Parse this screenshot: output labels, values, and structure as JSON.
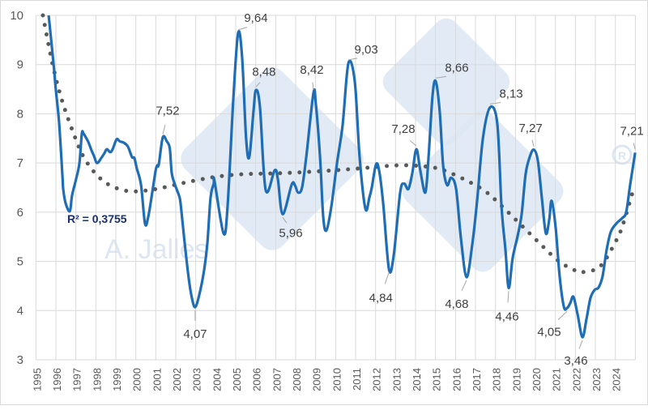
{
  "chart_data": {
    "type": "line",
    "title": "",
    "xlabel": "",
    "ylabel": "",
    "xlim": [
      1995,
      2025
    ],
    "ylim": [
      3,
      10
    ],
    "y_ticks": [
      "3",
      "4",
      "5",
      "6",
      "7",
      "8",
      "9",
      "10"
    ],
    "x_ticks": [
      "1995",
      "1996",
      "1997",
      "1998",
      "1999",
      "2000",
      "2001",
      "2002",
      "2003",
      "2004",
      "2005",
      "2006",
      "2007",
      "2008",
      "2009",
      "2010",
      "2011",
      "2012",
      "2013",
      "2014",
      "2015",
      "2016",
      "2017",
      "2018",
      "2019",
      "2020",
      "2021",
      "2022",
      "2023",
      "2024"
    ],
    "grid": true,
    "legend": "none",
    "series": [
      {
        "color": "#1f6db5",
        "style": "solid",
        "points": [
          [
            1995.64,
            10.0
          ],
          [
            1995.88,
            9.03
          ],
          [
            1996.0,
            8.48
          ],
          [
            1996.16,
            7.83
          ],
          [
            1996.33,
            6.73
          ],
          [
            1996.37,
            6.46
          ],
          [
            1996.49,
            6.18
          ],
          [
            1996.7,
            6.02
          ],
          [
            1996.81,
            6.34
          ],
          [
            1997.01,
            6.67
          ],
          [
            1997.18,
            7.0
          ],
          [
            1997.3,
            7.6
          ],
          [
            1997.38,
            7.6
          ],
          [
            1997.5,
            7.52
          ],
          [
            1997.62,
            7.43
          ],
          [
            1997.78,
            7.26
          ],
          [
            1997.9,
            7.15
          ],
          [
            1998.06,
            7.0
          ],
          [
            1998.27,
            7.1
          ],
          [
            1998.43,
            7.2
          ],
          [
            1998.55,
            7.28
          ],
          [
            1998.72,
            7.22
          ],
          [
            1998.84,
            7.28
          ],
          [
            1999.04,
            7.48
          ],
          [
            1999.2,
            7.44
          ],
          [
            1999.41,
            7.41
          ],
          [
            1999.61,
            7.33
          ],
          [
            1999.81,
            7.12
          ],
          [
            1999.93,
            7.1
          ],
          [
            2000.05,
            6.89
          ],
          [
            2000.26,
            6.56
          ],
          [
            2000.46,
            5.77
          ],
          [
            2000.62,
            5.9
          ],
          [
            2000.82,
            6.39
          ],
          [
            2000.99,
            6.84
          ],
          [
            2001.07,
            6.95
          ],
          [
            2001.15,
            6.97
          ],
          [
            2001.35,
            7.52
          ],
          [
            2001.55,
            7.44
          ],
          [
            2001.7,
            7.3
          ],
          [
            2001.8,
            6.79
          ],
          [
            2001.96,
            6.56
          ],
          [
            2002.16,
            6.34
          ],
          [
            2002.24,
            6.18
          ],
          [
            2002.45,
            5.36
          ],
          [
            2002.65,
            4.65
          ],
          [
            2002.81,
            4.25
          ],
          [
            2002.97,
            4.07
          ],
          [
            2003.17,
            4.31
          ],
          [
            2003.41,
            4.8
          ],
          [
            2003.58,
            5.36
          ],
          [
            2003.74,
            6.29
          ],
          [
            2003.9,
            6.58
          ],
          [
            2003.94,
            6.63
          ],
          [
            2004.39,
            5.57
          ],
          [
            2004.59,
            6.1
          ],
          [
            2004.88,
            8.3
          ],
          [
            2005.12,
            9.64
          ],
          [
            2005.32,
            9.15
          ],
          [
            2005.52,
            7.5
          ],
          [
            2005.68,
            7.12
          ],
          [
            2005.89,
            8.05
          ],
          [
            2006.01,
            8.48
          ],
          [
            2006.21,
            8.15
          ],
          [
            2006.5,
            6.45
          ],
          [
            2006.95,
            6.85
          ],
          [
            2007.11,
            6.67
          ],
          [
            2007.35,
            5.96
          ],
          [
            2007.8,
            6.56
          ],
          [
            2007.96,
            6.55
          ],
          [
            2008.12,
            6.4
          ],
          [
            2008.32,
            6.5
          ],
          [
            2008.53,
            7.12
          ],
          [
            2008.89,
            8.42
          ],
          [
            2009.01,
            8.2
          ],
          [
            2009.22,
            7.12
          ],
          [
            2009.38,
            5.9
          ],
          [
            2009.54,
            5.63
          ],
          [
            2009.78,
            6.1
          ],
          [
            2010.07,
            7.0
          ],
          [
            2010.35,
            7.77
          ],
          [
            2010.64,
            9.03
          ],
          [
            2010.96,
            8.65
          ],
          [
            2011.2,
            7.12
          ],
          [
            2011.49,
            6.07
          ],
          [
            2011.69,
            6.3
          ],
          [
            2011.81,
            6.5
          ],
          [
            2012.02,
            6.97
          ],
          [
            2012.18,
            6.84
          ],
          [
            2012.38,
            6.18
          ],
          [
            2012.67,
            4.84
          ],
          [
            2012.91,
            5.13
          ],
          [
            2013.23,
            6.4
          ],
          [
            2013.43,
            6.58
          ],
          [
            2013.64,
            6.47
          ],
          [
            2013.84,
            6.8
          ],
          [
            2014.04,
            7.28
          ],
          [
            2014.24,
            6.84
          ],
          [
            2014.49,
            6.4
          ],
          [
            2014.65,
            7.12
          ],
          [
            2014.85,
            8.37
          ],
          [
            2015.01,
            8.66
          ],
          [
            2015.21,
            8.04
          ],
          [
            2015.38,
            6.95
          ],
          [
            2015.58,
            6.55
          ],
          [
            2015.78,
            6.7
          ],
          [
            2016.03,
            6.47
          ],
          [
            2016.27,
            5.47
          ],
          [
            2016.55,
            4.68
          ],
          [
            2016.84,
            5.35
          ],
          [
            2017.08,
            6.23
          ],
          [
            2017.37,
            7.5
          ],
          [
            2017.73,
            8.13
          ],
          [
            2018.09,
            7.8
          ],
          [
            2018.3,
            6.12
          ],
          [
            2018.5,
            5.23
          ],
          [
            2018.66,
            4.46
          ],
          [
            2018.86,
            5.07
          ],
          [
            2019.11,
            5.52
          ],
          [
            2019.31,
            5.96
          ],
          [
            2019.51,
            6.78
          ],
          [
            2019.72,
            7.13
          ],
          [
            2019.92,
            7.27
          ],
          [
            2020.12,
            7.05
          ],
          [
            2020.32,
            6.29
          ],
          [
            2020.52,
            5.57
          ],
          [
            2020.69,
            5.85
          ],
          [
            2020.81,
            6.23
          ],
          [
            2021.01,
            5.69
          ],
          [
            2021.21,
            4.7
          ],
          [
            2021.42,
            4.08
          ],
          [
            2021.58,
            4.05
          ],
          [
            2021.74,
            4.15
          ],
          [
            2021.9,
            4.28
          ],
          [
            2022.11,
            3.92
          ],
          [
            2022.35,
            3.46
          ],
          [
            2022.55,
            3.82
          ],
          [
            2022.75,
            4.25
          ],
          [
            2022.96,
            4.42
          ],
          [
            2023.16,
            4.47
          ],
          [
            2023.36,
            4.7
          ],
          [
            2023.56,
            5.23
          ],
          [
            2023.77,
            5.6
          ],
          [
            2024.05,
            5.77
          ],
          [
            2024.34,
            5.88
          ],
          [
            2024.54,
            6.0
          ],
          [
            2024.74,
            6.56
          ],
          [
            2024.99,
            7.21
          ]
        ]
      },
      {
        "color": "#595959",
        "style": "dotted",
        "trendline": "polynomial",
        "points": [
          [
            1995.35,
            10.0
          ],
          [
            1995.84,
            9.0
          ],
          [
            1996.33,
            8.24
          ],
          [
            1996.98,
            7.5
          ],
          [
            1997.38,
            7.13
          ],
          [
            1997.95,
            6.8
          ],
          [
            1998.64,
            6.56
          ],
          [
            1999.57,
            6.43
          ],
          [
            2000.54,
            6.44
          ],
          [
            2001.48,
            6.51
          ],
          [
            2002.45,
            6.6
          ],
          [
            2003.87,
            6.71
          ],
          [
            2005.28,
            6.77
          ],
          [
            2007.72,
            6.8
          ],
          [
            2010.6,
            6.87
          ],
          [
            2013.03,
            6.95
          ],
          [
            2014.45,
            6.93
          ],
          [
            2015.42,
            6.85
          ],
          [
            2016.76,
            6.6
          ],
          [
            2017.57,
            6.4
          ],
          [
            2018.3,
            6.13
          ],
          [
            2019.68,
            5.58
          ],
          [
            2021.06,
            5.04
          ],
          [
            2021.91,
            4.83
          ],
          [
            2022.35,
            4.78
          ],
          [
            2023.24,
            4.9
          ],
          [
            2024.01,
            5.4
          ],
          [
            2024.38,
            5.75
          ],
          [
            2024.95,
            6.53
          ]
        ]
      }
    ],
    "annotations": [
      {
        "text": "7,52",
        "x": 2001.35,
        "y": 7.52
      },
      {
        "text": "4,07",
        "x": 2002.97,
        "y": 4.07
      },
      {
        "text": "9,64",
        "x": 2005.12,
        "y": 9.64
      },
      {
        "text": "8,48",
        "x": 2006.01,
        "y": 8.48
      },
      {
        "text": "5,96",
        "x": 2007.35,
        "y": 5.96
      },
      {
        "text": "8,42",
        "x": 2008.89,
        "y": 8.42
      },
      {
        "text": "9,03",
        "x": 2010.64,
        "y": 9.03
      },
      {
        "text": "4,84",
        "x": 2012.67,
        "y": 4.84
      },
      {
        "text": "7,28",
        "x": 2014.04,
        "y": 7.28
      },
      {
        "text": "8,66",
        "x": 2015.01,
        "y": 8.66
      },
      {
        "text": "4,68",
        "x": 2016.55,
        "y": 4.68
      },
      {
        "text": "8,13",
        "x": 2017.73,
        "y": 8.13
      },
      {
        "text": "4,46",
        "x": 2018.66,
        "y": 4.46
      },
      {
        "text": "7,27",
        "x": 2019.92,
        "y": 7.27
      },
      {
        "text": "4,05",
        "x": 2021.58,
        "y": 4.05
      },
      {
        "text": "3,46",
        "x": 2022.35,
        "y": 3.46
      },
      {
        "text": "7,21",
        "x": 2024.99,
        "y": 7.21
      }
    ],
    "r_squared_label": "R² = 0,3755",
    "r_squared_color": "#1a2f6b",
    "watermark": "A. Jalles",
    "watermark_color": "#dde7f3"
  }
}
